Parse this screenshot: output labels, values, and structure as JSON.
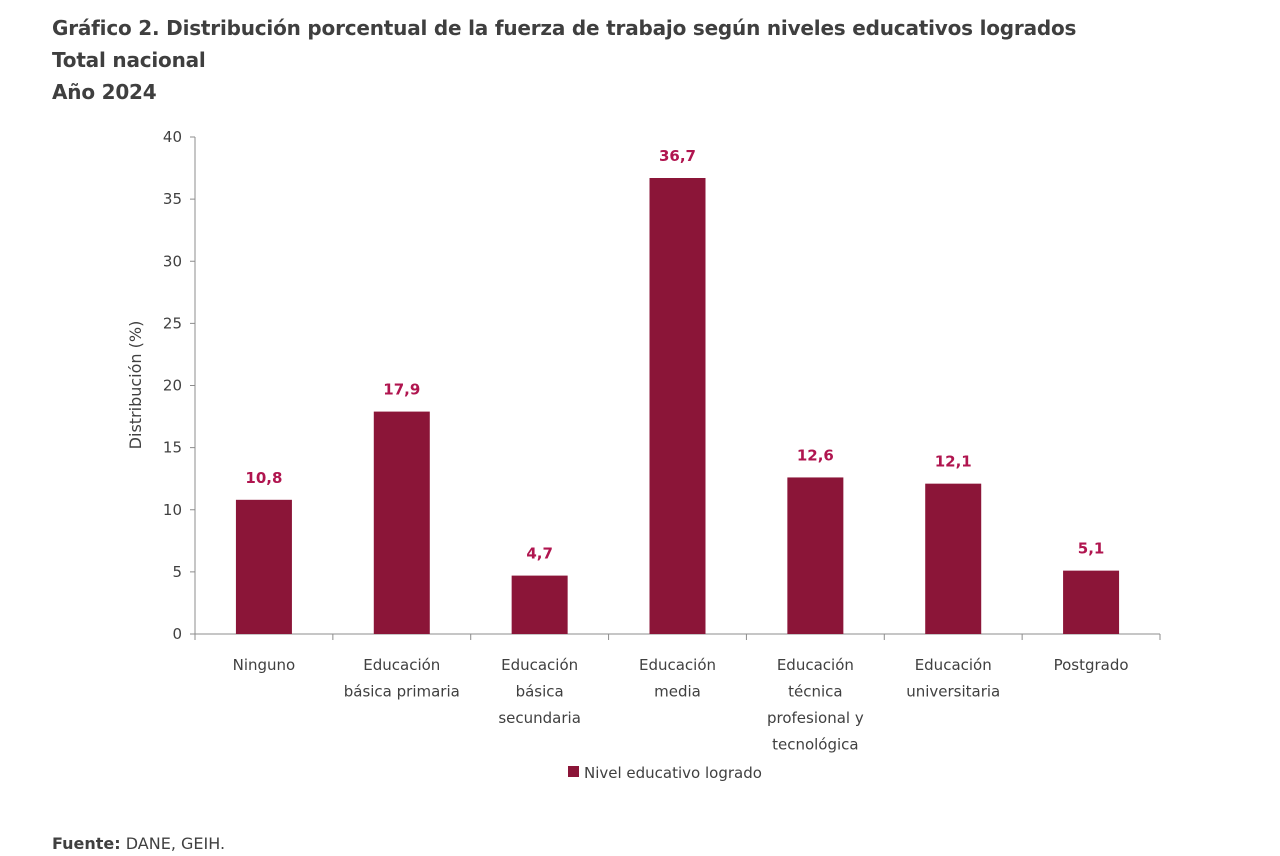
{
  "title": "Gráfico 2. Distribución porcentual de la fuerza de trabajo según niveles educativos logrados",
  "subtitle_1": "Total nacional",
  "subtitle_2": "Año 2024",
  "source_label": "Fuente:",
  "source_text": "DANE, GEIH.",
  "colors": {
    "bar": "#8b1538",
    "data_label": "#b0154f"
  },
  "chart_data": {
    "type": "bar",
    "categories": [
      [
        "Ninguno"
      ],
      [
        "Educación",
        "básica primaria"
      ],
      [
        "Educación",
        "básica",
        "secundaria"
      ],
      [
        "Educación",
        "media"
      ],
      [
        "Educación",
        "técnica",
        "profesional y",
        "tecnológica"
      ],
      [
        "Educación",
        "universitaria"
      ],
      [
        "Postgrado"
      ]
    ],
    "series": [
      {
        "name": "Nivel educativo logrado",
        "values": [
          10.8,
          17.9,
          4.7,
          36.7,
          12.6,
          12.1,
          5.1
        ]
      }
    ],
    "data_labels": [
      "10,8",
      "17,9",
      "4,7",
      "36,7",
      "12,6",
      "12,1",
      "5,1"
    ],
    "ylabel": "Distribución (%)",
    "xlabel": "",
    "ylim": [
      0,
      40
    ],
    "yticks": [
      0,
      5,
      10,
      15,
      20,
      25,
      30,
      35,
      40
    ],
    "grid": false,
    "legend": "bottom"
  }
}
